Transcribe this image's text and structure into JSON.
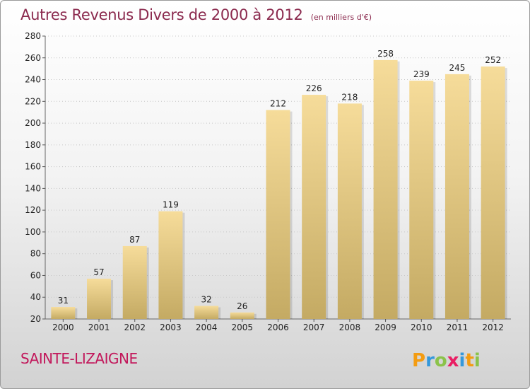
{
  "header": {
    "title": "Autres Revenus Divers de 2000 à 2012",
    "unit": "(en milliers d'€)"
  },
  "footer": {
    "commune": "SAINTE-LIZAIGNE",
    "brand": "Proxiti"
  },
  "colors": {
    "title": "#8b2a4e",
    "commune": "#c2185b",
    "bar_top": "#f6dc9a",
    "bar_bottom": "#c4aa63"
  },
  "chart_data": {
    "type": "bar",
    "title": "Autres Revenus Divers de 2000 à 2012",
    "subtitle": "(en milliers d'€)",
    "categories": [
      "2000",
      "2001",
      "2002",
      "2003",
      "2004",
      "2005",
      "2006",
      "2007",
      "2008",
      "2009",
      "2010",
      "2011",
      "2012"
    ],
    "values": [
      31,
      57,
      87,
      119,
      32,
      26,
      212,
      226,
      218,
      258,
      239,
      245,
      252
    ],
    "ylim": [
      20,
      280
    ],
    "yticks": [
      20,
      40,
      60,
      80,
      100,
      120,
      140,
      160,
      180,
      200,
      220,
      240,
      260,
      280
    ],
    "grid": true,
    "legend": "none"
  }
}
